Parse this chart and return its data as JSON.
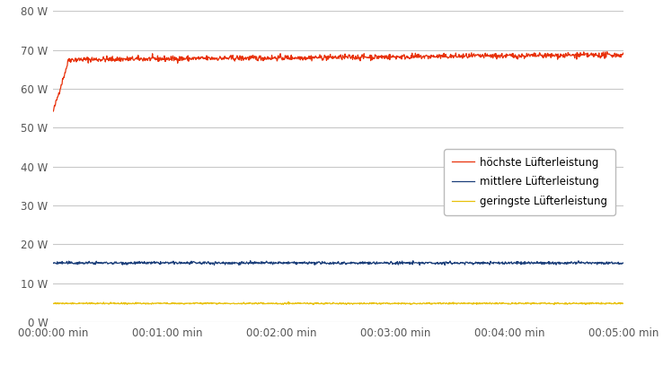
{
  "title": "",
  "xlabel": "",
  "ylabel": "",
  "xlim_seconds": 300,
  "ylim": [
    0,
    80
  ],
  "yticks": [
    0,
    10,
    20,
    30,
    40,
    50,
    60,
    70,
    80
  ],
  "ytick_labels": [
    "0 W",
    "10 W",
    "20 W",
    "30 W",
    "40 W",
    "50 W",
    "60 W",
    "70 W",
    "80 W"
  ],
  "xtick_positions": [
    0,
    60,
    120,
    180,
    240,
    300
  ],
  "xtick_labels": [
    "00:00:00 min",
    "00:01:00 min",
    "00:02:00 min",
    "00:03:00 min",
    "00:04:00 min",
    "00:05:00 min"
  ],
  "series": [
    {
      "label": "höchste Lüfterleistung",
      "color": "#e8310a",
      "start_val": 54.0,
      "rise_to": 67.0,
      "stable_val": 67.5,
      "noise_amp": 0.35,
      "rise_end_sec": 8,
      "drift": 1.2
    },
    {
      "label": "mittlere Lüfterleistung",
      "color": "#1c3f7a",
      "start_val": 15.2,
      "rise_to": 15.2,
      "stable_val": 15.2,
      "noise_amp": 0.18,
      "rise_end_sec": 1,
      "drift": 0
    },
    {
      "label": "geringste Lüfterleistung",
      "color": "#e8c00a",
      "start_val": 4.8,
      "rise_to": 4.8,
      "stable_val": 4.8,
      "noise_amp": 0.1,
      "rise_end_sec": 1,
      "drift": 0
    }
  ],
  "background_color": "#ffffff",
  "grid_color": "#c8c8c8",
  "fig_width": 7.38,
  "fig_height": 4.08,
  "dpi": 100
}
